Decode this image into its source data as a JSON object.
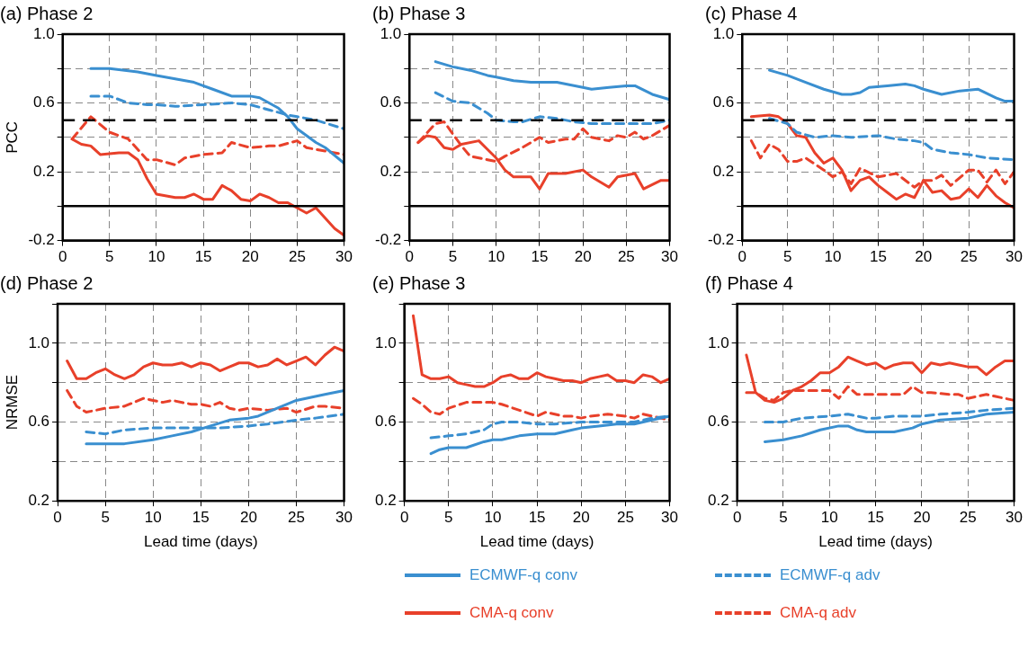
{
  "chart_data": [
    {
      "type": "line",
      "title": "(a) Phase 2",
      "ylabel": "PCC",
      "xlim": [
        0,
        30
      ],
      "xticks": [
        0,
        5,
        10,
        15,
        20,
        25,
        30
      ],
      "ylim": [
        -0.2,
        1.0
      ],
      "yticks": [
        -0.2,
        {
          "value": 0,
          "label": null
        },
        0.2,
        {
          "value": 0.4,
          "label": null
        },
        0.6,
        {
          "value": 0.8,
          "label": null
        },
        {
          "value": 1.0,
          "label": "1.0"
        }
      ],
      "grid": true,
      "ref_lines": [
        {
          "axis": "y",
          "value": 0,
          "color": "#000000",
          "line_style": "solid"
        },
        {
          "axis": "y",
          "value": 0.5,
          "color": "#000000",
          "line_style": "dashed"
        }
      ],
      "series": [
        {
          "color": "#3a8fd0",
          "line_style": "solid",
          "x": [
            3,
            5,
            8,
            10,
            12,
            14,
            16,
            18,
            20,
            21,
            23,
            24,
            25,
            27,
            28,
            30
          ],
          "values": [
            0.8,
            0.8,
            0.78,
            0.76,
            0.74,
            0.72,
            0.68,
            0.64,
            0.64,
            0.63,
            0.57,
            0.52,
            0.45,
            0.37,
            0.34,
            0.25
          ]
        },
        {
          "color": "#3a8fd0",
          "line_style": "dashed",
          "x": [
            3,
            5,
            7,
            9,
            10,
            12,
            15,
            18,
            20,
            22,
            24,
            25,
            27,
            30
          ],
          "values": [
            0.64,
            0.64,
            0.6,
            0.59,
            0.59,
            0.58,
            0.59,
            0.6,
            0.59,
            0.56,
            0.53,
            0.52,
            0.5,
            0.45
          ]
        },
        {
          "color": "#e8402a",
          "line_style": "solid",
          "x": [
            1,
            2,
            3,
            4,
            6,
            7,
            8,
            9,
            10,
            12,
            13,
            14,
            15,
            16,
            17,
            18,
            19,
            20,
            21,
            22,
            23,
            24,
            25,
            26,
            27,
            28,
            29,
            30
          ],
          "values": [
            0.39,
            0.36,
            0.35,
            0.3,
            0.31,
            0.31,
            0.27,
            0.16,
            0.07,
            0.05,
            0.05,
            0.07,
            0.04,
            0.04,
            0.12,
            0.09,
            0.04,
            0.03,
            0.07,
            0.05,
            0.02,
            0.02,
            -0.01,
            -0.04,
            -0.01,
            -0.07,
            -0.13,
            -0.17
          ]
        },
        {
          "color": "#e8402a",
          "line_style": "dashed",
          "x": [
            1,
            3,
            5,
            7,
            9,
            10,
            12,
            13,
            15,
            17,
            18,
            20,
            22,
            23,
            25,
            26,
            28,
            30
          ],
          "values": [
            0.39,
            0.52,
            0.43,
            0.39,
            0.27,
            0.27,
            0.24,
            0.28,
            0.3,
            0.31,
            0.37,
            0.34,
            0.35,
            0.35,
            0.38,
            0.34,
            0.32,
            0.3
          ]
        }
      ]
    },
    {
      "type": "line",
      "title": "(b) Phase 3",
      "xlim": [
        0,
        30
      ],
      "xticks": [
        0,
        5,
        10,
        15,
        20,
        25,
        30
      ],
      "ylim": [
        -0.2,
        1.0
      ],
      "yticks": [
        -0.2,
        {
          "value": 0,
          "label": null
        },
        0.2,
        {
          "value": 0.4,
          "label": null
        },
        0.6,
        {
          "value": 0.8,
          "label": null
        },
        {
          "value": 1.0,
          "label": "1.0"
        }
      ],
      "grid": true,
      "ref_lines": [
        {
          "axis": "y",
          "value": 0,
          "color": "#000000",
          "line_style": "solid"
        },
        {
          "axis": "y",
          "value": 0.5,
          "color": "#000000",
          "line_style": "dashed"
        }
      ],
      "series": [
        {
          "color": "#3a8fd0",
          "line_style": "solid",
          "x": [
            3,
            5,
            7,
            9,
            10,
            12,
            14,
            17,
            20,
            21,
            23,
            25,
            26,
            28,
            30
          ],
          "values": [
            0.84,
            0.81,
            0.79,
            0.76,
            0.75,
            0.73,
            0.72,
            0.72,
            0.69,
            0.68,
            0.69,
            0.7,
            0.7,
            0.65,
            0.62
          ]
        },
        {
          "color": "#3a8fd0",
          "line_style": "dashed",
          "x": [
            3,
            5,
            7,
            9,
            10,
            12,
            13,
            15,
            17,
            19,
            21,
            25,
            28,
            30
          ],
          "values": [
            0.66,
            0.61,
            0.6,
            0.54,
            0.5,
            0.49,
            0.49,
            0.52,
            0.51,
            0.49,
            0.48,
            0.48,
            0.48,
            0.5
          ]
        },
        {
          "color": "#e8402a",
          "line_style": "solid",
          "x": [
            1,
            2,
            3,
            4,
            5,
            6,
            8,
            9,
            10,
            11,
            12,
            14,
            15,
            16,
            18,
            20,
            21,
            23,
            24,
            26,
            27,
            29,
            30
          ],
          "values": [
            0.37,
            0.41,
            0.4,
            0.34,
            0.33,
            0.36,
            0.38,
            0.33,
            0.28,
            0.21,
            0.17,
            0.17,
            0.1,
            0.19,
            0.19,
            0.21,
            0.17,
            0.11,
            0.17,
            0.19,
            0.1,
            0.15,
            0.15
          ]
        },
        {
          "color": "#e8402a",
          "line_style": "dashed",
          "x": [
            1,
            3,
            4,
            5,
            6,
            7,
            9,
            10,
            11,
            13,
            15,
            16,
            18,
            19,
            20,
            21,
            23,
            24,
            25,
            26,
            27,
            28,
            30
          ],
          "values": [
            0.37,
            0.48,
            0.49,
            0.42,
            0.35,
            0.29,
            0.27,
            0.26,
            0.29,
            0.34,
            0.4,
            0.37,
            0.39,
            0.39,
            0.45,
            0.4,
            0.38,
            0.41,
            0.4,
            0.43,
            0.39,
            0.41,
            0.47
          ]
        }
      ]
    },
    {
      "type": "line",
      "title": "(c) Phase 4",
      "xlim": [
        0,
        30
      ],
      "xticks": [
        0,
        5,
        10,
        15,
        20,
        25,
        30
      ],
      "ylim": [
        -0.2,
        1.0
      ],
      "yticks": [
        -0.2,
        {
          "value": 0,
          "label": null
        },
        0.2,
        {
          "value": 0.4,
          "label": null
        },
        0.6,
        {
          "value": 0.8,
          "label": null
        },
        {
          "value": 1.0,
          "label": "1.0"
        }
      ],
      "grid": true,
      "ref_lines": [
        {
          "axis": "y",
          "value": 0,
          "color": "#000000",
          "line_style": "solid"
        },
        {
          "axis": "y",
          "value": 0.5,
          "color": "#000000",
          "line_style": "dashed"
        }
      ],
      "series": [
        {
          "color": "#3a8fd0",
          "line_style": "solid",
          "x": [
            3,
            5,
            7,
            9,
            11,
            12,
            13,
            14,
            16,
            18,
            19,
            20,
            22,
            24,
            26,
            28,
            29,
            30
          ],
          "values": [
            0.79,
            0.76,
            0.72,
            0.68,
            0.65,
            0.65,
            0.66,
            0.69,
            0.7,
            0.71,
            0.7,
            0.68,
            0.65,
            0.67,
            0.68,
            0.63,
            0.61,
            0.61
          ]
        },
        {
          "color": "#3a8fd0",
          "line_style": "dashed",
          "x": [
            3,
            5,
            6,
            8,
            10,
            12,
            15,
            17,
            19,
            20,
            21,
            23,
            25,
            27,
            30
          ],
          "values": [
            0.51,
            0.48,
            0.43,
            0.4,
            0.41,
            0.4,
            0.41,
            0.39,
            0.38,
            0.37,
            0.33,
            0.31,
            0.3,
            0.28,
            0.27
          ]
        },
        {
          "color": "#e8402a",
          "line_style": "solid",
          "x": [
            1,
            3,
            4,
            5,
            6,
            7,
            8,
            9,
            10,
            11,
            12,
            13,
            14,
            15,
            16,
            17,
            18,
            19,
            20,
            21,
            22,
            23,
            24,
            25,
            26,
            27,
            28,
            29,
            30
          ],
          "values": [
            0.52,
            0.53,
            0.52,
            0.48,
            0.41,
            0.4,
            0.31,
            0.25,
            0.28,
            0.21,
            0.09,
            0.15,
            0.17,
            0.12,
            0.08,
            0.04,
            0.07,
            0.05,
            0.15,
            0.08,
            0.09,
            0.04,
            0.05,
            0.1,
            0.05,
            0.12,
            0.06,
            0.02,
            -0.01
          ]
        },
        {
          "color": "#e8402a",
          "line_style": "dashed",
          "x": [
            1,
            2,
            3,
            4,
            5,
            6,
            7,
            9,
            10,
            11,
            12,
            13,
            15,
            17,
            19,
            20,
            21,
            22,
            23,
            25,
            26,
            27,
            28,
            29,
            30
          ],
          "values": [
            0.38,
            0.28,
            0.36,
            0.33,
            0.26,
            0.26,
            0.28,
            0.21,
            0.17,
            0.2,
            0.13,
            0.22,
            0.17,
            0.19,
            0.11,
            0.15,
            0.15,
            0.18,
            0.12,
            0.21,
            0.21,
            0.14,
            0.21,
            0.13,
            0.2
          ]
        }
      ]
    },
    {
      "type": "line",
      "title": "(d) Phase 2",
      "xlabel": "Lead time (days)",
      "ylabel": "NRMSE",
      "xlim": [
        0,
        30
      ],
      "xticks": [
        0,
        5,
        10,
        15,
        20,
        25,
        30
      ],
      "ylim": [
        0.2,
        1.2
      ],
      "yticks": [
        0.2,
        {
          "value": 0.4,
          "label": null
        },
        0.6,
        {
          "value": 0.8,
          "label": null
        },
        {
          "value": 1.0,
          "label": "1.0"
        },
        {
          "value": 1.2,
          "label": null
        }
      ],
      "grid": true,
      "series": [
        {
          "color": "#3a8fd0",
          "line_style": "solid",
          "x": [
            3,
            5,
            7,
            10,
            12,
            14,
            16,
            18,
            20,
            21,
            23,
            25,
            27,
            28,
            30
          ],
          "values": [
            0.49,
            0.49,
            0.49,
            0.51,
            0.53,
            0.55,
            0.58,
            0.61,
            0.62,
            0.63,
            0.67,
            0.71,
            0.73,
            0.74,
            0.76
          ]
        },
        {
          "color": "#3a8fd0",
          "line_style": "dashed",
          "x": [
            3,
            5,
            7,
            10,
            13,
            15,
            17,
            20,
            22,
            25,
            27,
            30
          ],
          "values": [
            0.55,
            0.54,
            0.56,
            0.57,
            0.57,
            0.57,
            0.57,
            0.58,
            0.59,
            0.61,
            0.62,
            0.64
          ]
        },
        {
          "color": "#e8402a",
          "line_style": "solid",
          "x": [
            1,
            2,
            3,
            4,
            5,
            6,
            7,
            8,
            9,
            10,
            11,
            12,
            13,
            14,
            15,
            16,
            17,
            18,
            19,
            20,
            21,
            22,
            23,
            24,
            25,
            26,
            27,
            28,
            29,
            30
          ],
          "values": [
            0.91,
            0.82,
            0.82,
            0.85,
            0.87,
            0.84,
            0.82,
            0.84,
            0.88,
            0.9,
            0.89,
            0.89,
            0.9,
            0.88,
            0.9,
            0.89,
            0.86,
            0.88,
            0.9,
            0.9,
            0.88,
            0.89,
            0.92,
            0.89,
            0.91,
            0.93,
            0.89,
            0.94,
            0.98,
            0.96
          ]
        },
        {
          "color": "#e8402a",
          "line_style": "dashed",
          "x": [
            1,
            2,
            3,
            4,
            5,
            7,
            9,
            10,
            11,
            12,
            14,
            15,
            16,
            17,
            18,
            19,
            20,
            22,
            24,
            25,
            27,
            28,
            30
          ],
          "values": [
            0.76,
            0.68,
            0.65,
            0.66,
            0.67,
            0.68,
            0.72,
            0.71,
            0.7,
            0.71,
            0.69,
            0.69,
            0.68,
            0.7,
            0.67,
            0.66,
            0.67,
            0.66,
            0.67,
            0.65,
            0.68,
            0.68,
            0.67
          ]
        }
      ]
    },
    {
      "type": "line",
      "title": "(e) Phase 3",
      "xlabel": "Lead time (days)",
      "xlim": [
        0,
        30
      ],
      "xticks": [
        0,
        5,
        10,
        15,
        20,
        25,
        30
      ],
      "ylim": [
        0.2,
        1.2
      ],
      "yticks": [
        0.2,
        {
          "value": 0.4,
          "label": null
        },
        0.6,
        {
          "value": 0.8,
          "label": null
        },
        {
          "value": 1.0,
          "label": "1.0"
        },
        {
          "value": 1.2,
          "label": null
        }
      ],
      "grid": true,
      "series": [
        {
          "color": "#3a8fd0",
          "line_style": "solid",
          "x": [
            3,
            4,
            5,
            7,
            9,
            10,
            11,
            13,
            15,
            17,
            19,
            20,
            22,
            24,
            26,
            28,
            30
          ],
          "values": [
            0.44,
            0.46,
            0.47,
            0.47,
            0.5,
            0.51,
            0.51,
            0.53,
            0.54,
            0.54,
            0.56,
            0.57,
            0.58,
            0.59,
            0.59,
            0.61,
            0.63
          ]
        },
        {
          "color": "#3a8fd0",
          "line_style": "dashed",
          "x": [
            3,
            5,
            7,
            9,
            10,
            11,
            13,
            15,
            17,
            20,
            23,
            26,
            28,
            30
          ],
          "values": [
            0.52,
            0.53,
            0.54,
            0.56,
            0.59,
            0.6,
            0.6,
            0.59,
            0.59,
            0.6,
            0.6,
            0.6,
            0.62,
            0.63
          ]
        },
        {
          "color": "#e8402a",
          "line_style": "solid",
          "x": [
            1,
            2,
            3,
            4,
            5,
            6,
            7,
            8,
            9,
            10,
            11,
            12,
            13,
            14,
            15,
            16,
            17,
            18,
            19,
            20,
            21,
            22,
            23,
            24,
            25,
            26,
            27,
            28,
            29,
            30
          ],
          "values": [
            1.14,
            0.84,
            0.82,
            0.82,
            0.83,
            0.8,
            0.79,
            0.78,
            0.78,
            0.8,
            0.83,
            0.84,
            0.82,
            0.82,
            0.85,
            0.83,
            0.82,
            0.81,
            0.81,
            0.8,
            0.82,
            0.83,
            0.84,
            0.81,
            0.81,
            0.8,
            0.84,
            0.83,
            0.8,
            0.82
          ]
        },
        {
          "color": "#e8402a",
          "line_style": "dashed",
          "x": [
            1,
            2,
            3,
            4,
            5,
            7,
            9,
            10,
            11,
            13,
            15,
            16,
            18,
            19,
            20,
            21,
            23,
            25,
            26,
            27,
            28,
            30
          ],
          "values": [
            0.72,
            0.69,
            0.65,
            0.64,
            0.67,
            0.7,
            0.7,
            0.7,
            0.69,
            0.66,
            0.63,
            0.65,
            0.63,
            0.63,
            0.62,
            0.63,
            0.64,
            0.63,
            0.62,
            0.64,
            0.63,
            0.61
          ]
        }
      ]
    },
    {
      "type": "line",
      "title": "(f) Phase 4",
      "xlabel": "Lead time (days)",
      "xlim": [
        0,
        30
      ],
      "xticks": [
        0,
        5,
        10,
        15,
        20,
        25,
        30
      ],
      "ylim": [
        0.2,
        1.2
      ],
      "yticks": [
        0.2,
        {
          "value": 0.4,
          "label": null
        },
        0.6,
        {
          "value": 0.8,
          "label": null
        },
        {
          "value": 1.0,
          "label": "1.0"
        },
        {
          "value": 1.2,
          "label": null
        }
      ],
      "grid": true,
      "legend": "bottom",
      "series": [
        {
          "name": "ECMWF-q conv",
          "color": "#3a8fd0",
          "line_style": "solid",
          "x": [
            3,
            5,
            7,
            9,
            11,
            12,
            13,
            14,
            16,
            17,
            19,
            20,
            22,
            25,
            27,
            30
          ],
          "values": [
            0.5,
            0.51,
            0.53,
            0.56,
            0.58,
            0.58,
            0.56,
            0.55,
            0.55,
            0.55,
            0.57,
            0.59,
            0.61,
            0.62,
            0.64,
            0.65
          ]
        },
        {
          "name": "ECMWF-q adv",
          "color": "#3a8fd0",
          "line_style": "dashed",
          "x": [
            3,
            5,
            7,
            10,
            12,
            14,
            15,
            17,
            20,
            22,
            25,
            27,
            30
          ],
          "values": [
            0.6,
            0.6,
            0.62,
            0.63,
            0.64,
            0.62,
            0.62,
            0.63,
            0.63,
            0.64,
            0.65,
            0.66,
            0.67
          ]
        },
        {
          "name": "CMA-q conv",
          "color": "#e8402a",
          "line_style": "solid",
          "x": [
            1,
            2,
            3,
            4,
            5,
            6,
            7,
            8,
            9,
            10,
            11,
            12,
            13,
            14,
            15,
            16,
            17,
            18,
            19,
            20,
            21,
            22,
            23,
            24,
            25,
            26,
            27,
            28,
            29,
            30
          ],
          "values": [
            0.94,
            0.75,
            0.71,
            0.7,
            0.72,
            0.76,
            0.78,
            0.81,
            0.85,
            0.85,
            0.88,
            0.93,
            0.91,
            0.89,
            0.9,
            0.87,
            0.89,
            0.9,
            0.9,
            0.85,
            0.9,
            0.89,
            0.9,
            0.89,
            0.88,
            0.88,
            0.84,
            0.88,
            0.91,
            0.91
          ]
        },
        {
          "name": "CMA-q adv",
          "color": "#e8402a",
          "line_style": "dashed",
          "x": [
            1,
            2,
            3,
            4,
            5,
            6,
            8,
            9,
            10,
            11,
            12,
            13,
            14,
            16,
            18,
            19,
            20,
            21,
            23,
            24,
            25,
            26,
            27,
            28,
            30
          ],
          "values": [
            0.75,
            0.75,
            0.72,
            0.71,
            0.75,
            0.76,
            0.76,
            0.76,
            0.76,
            0.72,
            0.78,
            0.74,
            0.74,
            0.74,
            0.74,
            0.78,
            0.75,
            0.75,
            0.74,
            0.74,
            0.72,
            0.73,
            0.74,
            0.73,
            0.71
          ]
        }
      ]
    }
  ]
}
